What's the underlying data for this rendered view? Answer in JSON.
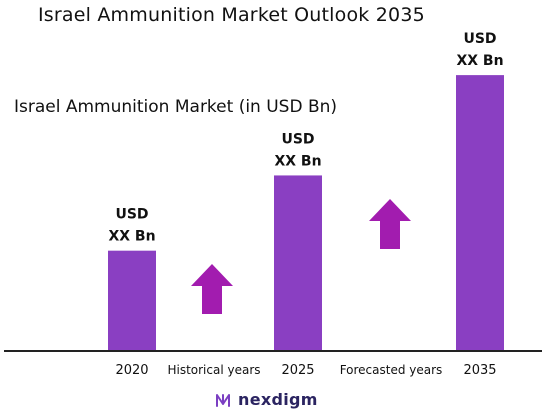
{
  "title": "Israel Ammunition Market Outlook 2035",
  "chart_data": {
    "type": "bar",
    "title": "Israel Ammunition Market (in USD Bn)",
    "categories": [
      "2020",
      "2025",
      "2035"
    ],
    "values": [
      1,
      1.75,
      2.75
    ],
    "value_labels": [
      [
        "USD",
        "XX Bn"
      ],
      [
        "USD",
        "XX Bn"
      ],
      [
        "USD",
        "XX Bn"
      ]
    ],
    "ylim": [
      0,
      3.1
    ],
    "annotations": [
      "Historical years",
      "Forecasted years"
    ],
    "bar_color": "#8A3FC2",
    "arrow_color": "#A21CAF",
    "grid": false
  },
  "footer": {
    "brand": "nexdigm",
    "logo_icon": "nexdigm-logo-icon",
    "brand_color": "#2b2461"
  }
}
